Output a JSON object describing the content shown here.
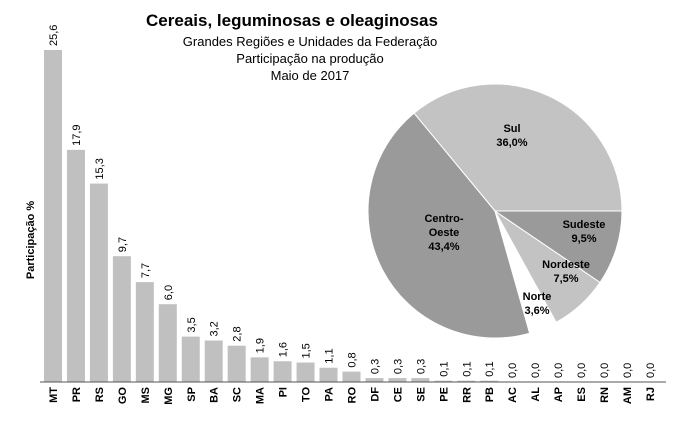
{
  "chart_data": [
    {
      "type": "bar",
      "title": "Cereais, leguminosas e oleaginosas",
      "subtitle": [
        "Grandes Regiões e Unidades da Federação",
        "Participação na produção",
        "Maio de 2017"
      ],
      "ylabel": "Participação %",
      "xlabel": "",
      "ylim": [
        0,
        26
      ],
      "grid": false,
      "bar_color": "#c0c0c0",
      "categories": [
        "MT",
        "PR",
        "RS",
        "GO",
        "MS",
        "MG",
        "SP",
        "BA",
        "SC",
        "MA",
        "PI",
        "TO",
        "PA",
        "RO",
        "DF",
        "CE",
        "SE",
        "PE",
        "RR",
        "PB",
        "AC",
        "AL",
        "AP",
        "ES",
        "RN",
        "AM",
        "RJ"
      ],
      "values": [
        25.6,
        17.9,
        15.3,
        9.7,
        7.7,
        6.0,
        3.5,
        3.2,
        2.8,
        1.9,
        1.6,
        1.5,
        1.1,
        0.8,
        0.3,
        0.3,
        0.3,
        0.1,
        0.1,
        0.1,
        0.0,
        0.0,
        0.0,
        0.0,
        0.0,
        0.0,
        0.0
      ],
      "data_labels": [
        "25,6",
        "17,9",
        "15,3",
        "9,7",
        "7,7",
        "6,0",
        "3,5",
        "3,2",
        "2,8",
        "1,9",
        "1,6",
        "1,5",
        "1,1",
        "0,8",
        "0,3",
        "0,3",
        "0,3",
        "0,1",
        "0,1",
        "0,1",
        "0,0",
        "0,0",
        "0,0",
        "0,0",
        "0,0",
        "0,0",
        "0,0"
      ]
    },
    {
      "type": "pie",
      "slices": [
        {
          "name": "Sul",
          "value": 36.0,
          "label": "36,0%",
          "color": "#c3c3c3"
        },
        {
          "name": "Centro-Oeste",
          "label_lines": [
            "Centro-",
            "Oeste"
          ],
          "value": 43.4,
          "label": "43,4%",
          "color": "#9a9a9a"
        },
        {
          "name": "Norte",
          "value": 3.6,
          "label": "3,6%",
          "color": "#ffffff"
        },
        {
          "name": "Nordeste",
          "value": 7.5,
          "label": "7,5%",
          "color": "#c3c3c3"
        },
        {
          "name": "Sudeste",
          "value": 9.5,
          "label": "9,5%",
          "color": "#9a9a9a"
        }
      ]
    }
  ]
}
